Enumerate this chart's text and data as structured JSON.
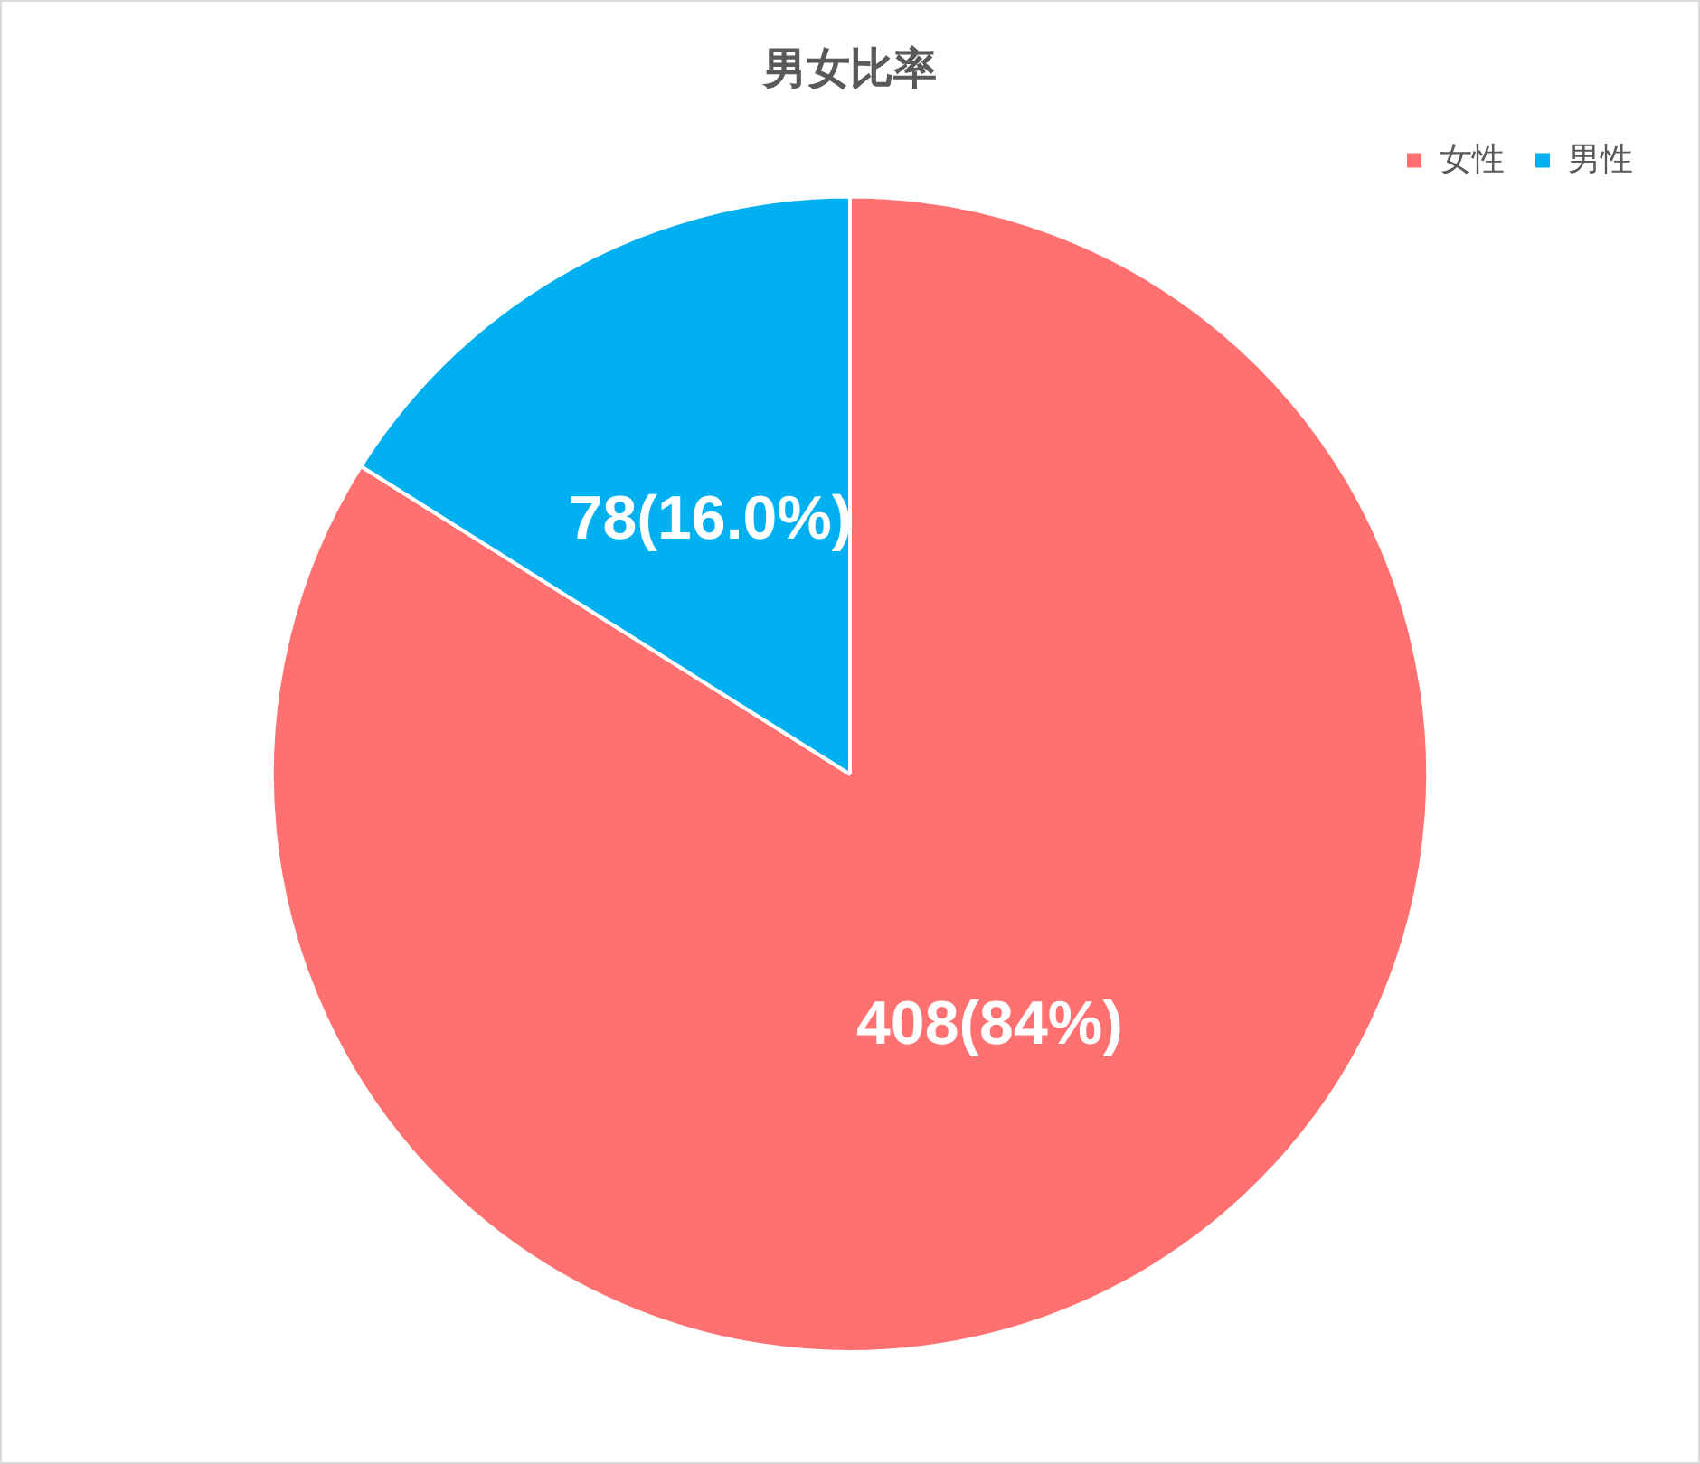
{
  "chart_data": {
    "type": "pie",
    "title": "男女比率",
    "categories": [
      "女性",
      "男性"
    ],
    "values": [
      408,
      78
    ],
    "colors": [
      "#ff7070",
      "#00b0f0"
    ],
    "value_labels": [
      "408(84%)",
      "78(16.0%)"
    ],
    "legend": "top right"
  }
}
